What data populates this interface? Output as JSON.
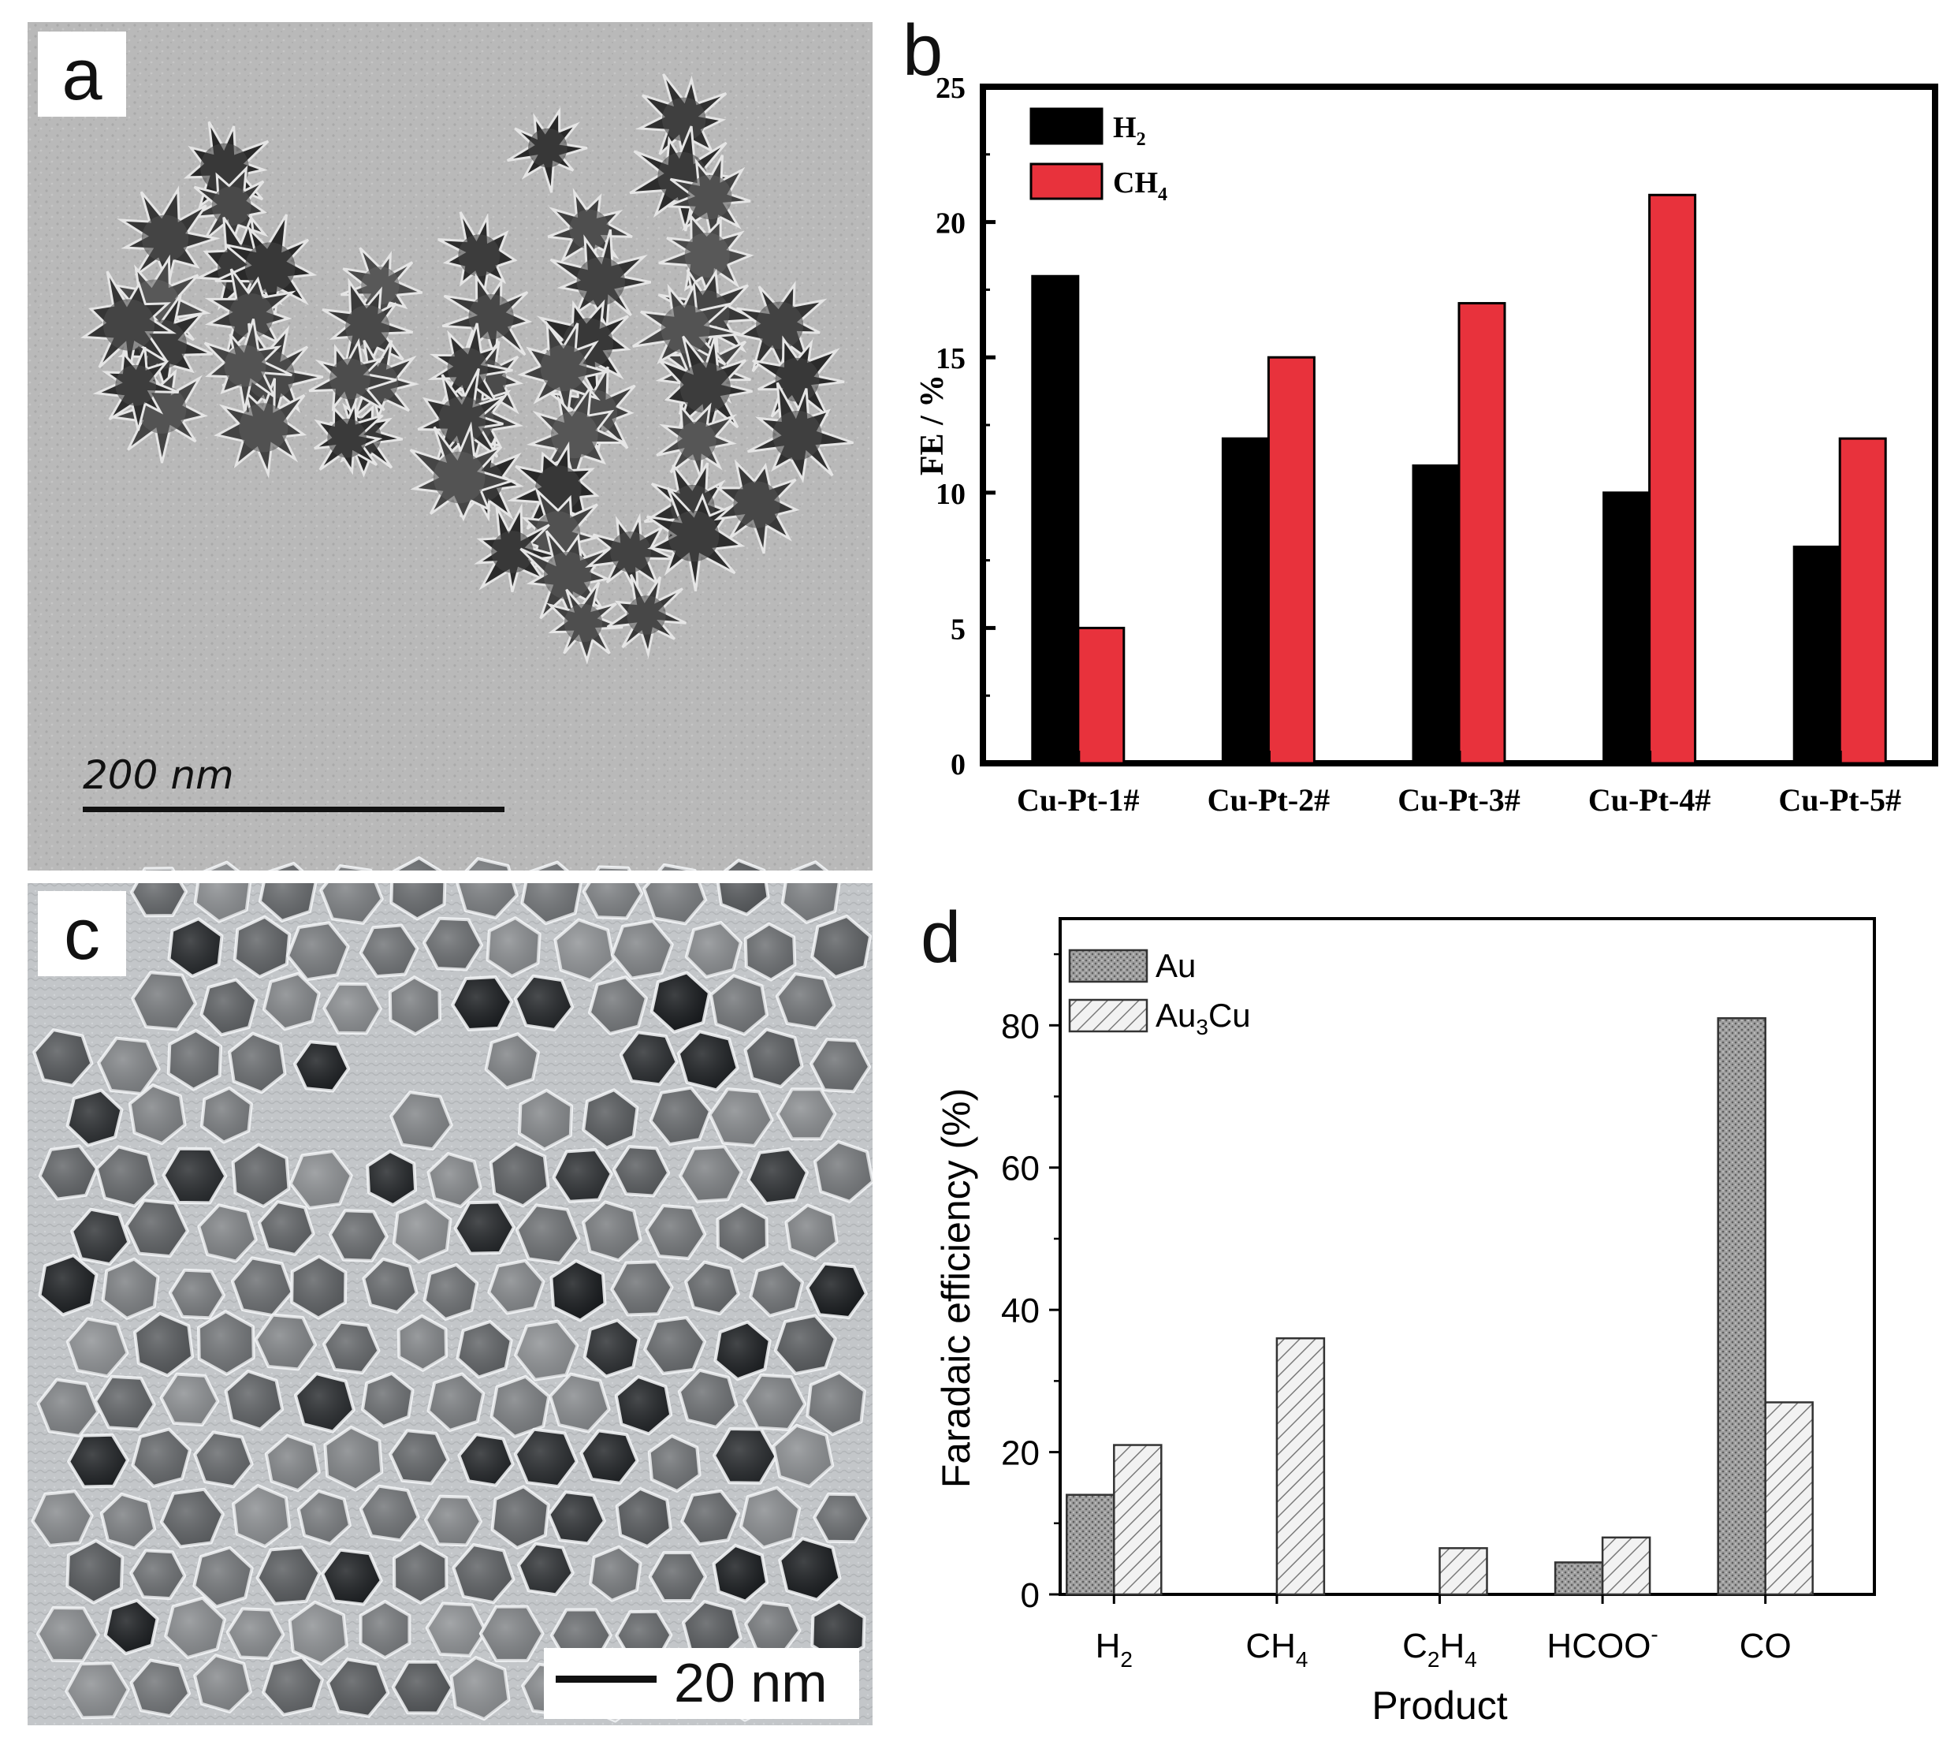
{
  "panels": {
    "a": {
      "letter": "a",
      "scale_label": "200 nm"
    },
    "b": {
      "letter": "b"
    },
    "c": {
      "letter": "c",
      "scale_label": "20 nm"
    },
    "d": {
      "letter": "d"
    }
  },
  "chart_data": [
    {
      "panel": "b",
      "type": "bar",
      "title": "",
      "xlabel": "",
      "ylabel": "FE / %",
      "ylim": [
        0,
        25
      ],
      "yticks": [
        0,
        5,
        10,
        15,
        20,
        25
      ],
      "categories": [
        "Cu-Pt-1#",
        "Cu-Pt-2#",
        "Cu-Pt-3#",
        "Cu-Pt-4#",
        "Cu-Pt-5#"
      ],
      "series": [
        {
          "name": "H2",
          "label_main": "H",
          "label_sub": "2",
          "color": "#000000",
          "values": [
            18,
            12,
            11,
            10,
            8
          ]
        },
        {
          "name": "CH4",
          "label_main": "CH",
          "label_sub": "4",
          "color": "#e8323c",
          "values": [
            5,
            15,
            17,
            21,
            12
          ]
        }
      ],
      "legend_position": "top-left",
      "grid": false
    },
    {
      "panel": "d",
      "type": "bar",
      "title": "",
      "xlabel": "Product",
      "ylabel": "Faradaic efficiency (%)",
      "ylim": [
        0,
        95
      ],
      "yticks": [
        0,
        20,
        40,
        60,
        80
      ],
      "categories": [
        "H2",
        "CH4",
        "C2H4",
        "HCOO-",
        "CO"
      ],
      "category_labels": [
        [
          {
            "t": "H",
            "s": null
          },
          {
            "t": "2",
            "s": "sub"
          }
        ],
        [
          {
            "t": "CH",
            "s": null
          },
          {
            "t": "4",
            "s": "sub"
          }
        ],
        [
          {
            "t": "C",
            "s": null
          },
          {
            "t": "2",
            "s": "sub"
          },
          {
            "t": "H",
            "s": null
          },
          {
            "t": "4",
            "s": "sub"
          }
        ],
        [
          {
            "t": "HCOO",
            "s": null
          },
          {
            "t": "-",
            "s": "sup"
          }
        ],
        [
          {
            "t": "CO",
            "s": null
          }
        ]
      ],
      "series": [
        {
          "name": "Au",
          "label_parts": [
            {
              "t": "Au",
              "s": null
            }
          ],
          "pattern": "dotted-grey",
          "values": [
            14,
            0,
            0,
            4.5,
            81
          ]
        },
        {
          "name": "Au3Cu",
          "label_parts": [
            {
              "t": "Au",
              "s": null
            },
            {
              "t": "3",
              "s": "sub"
            },
            {
              "t": "Cu",
              "s": null
            }
          ],
          "pattern": "diagonal-hatch",
          "values": [
            21,
            36,
            6.5,
            8,
            27
          ]
        }
      ],
      "legend_position": "top-left",
      "grid": false
    }
  ]
}
